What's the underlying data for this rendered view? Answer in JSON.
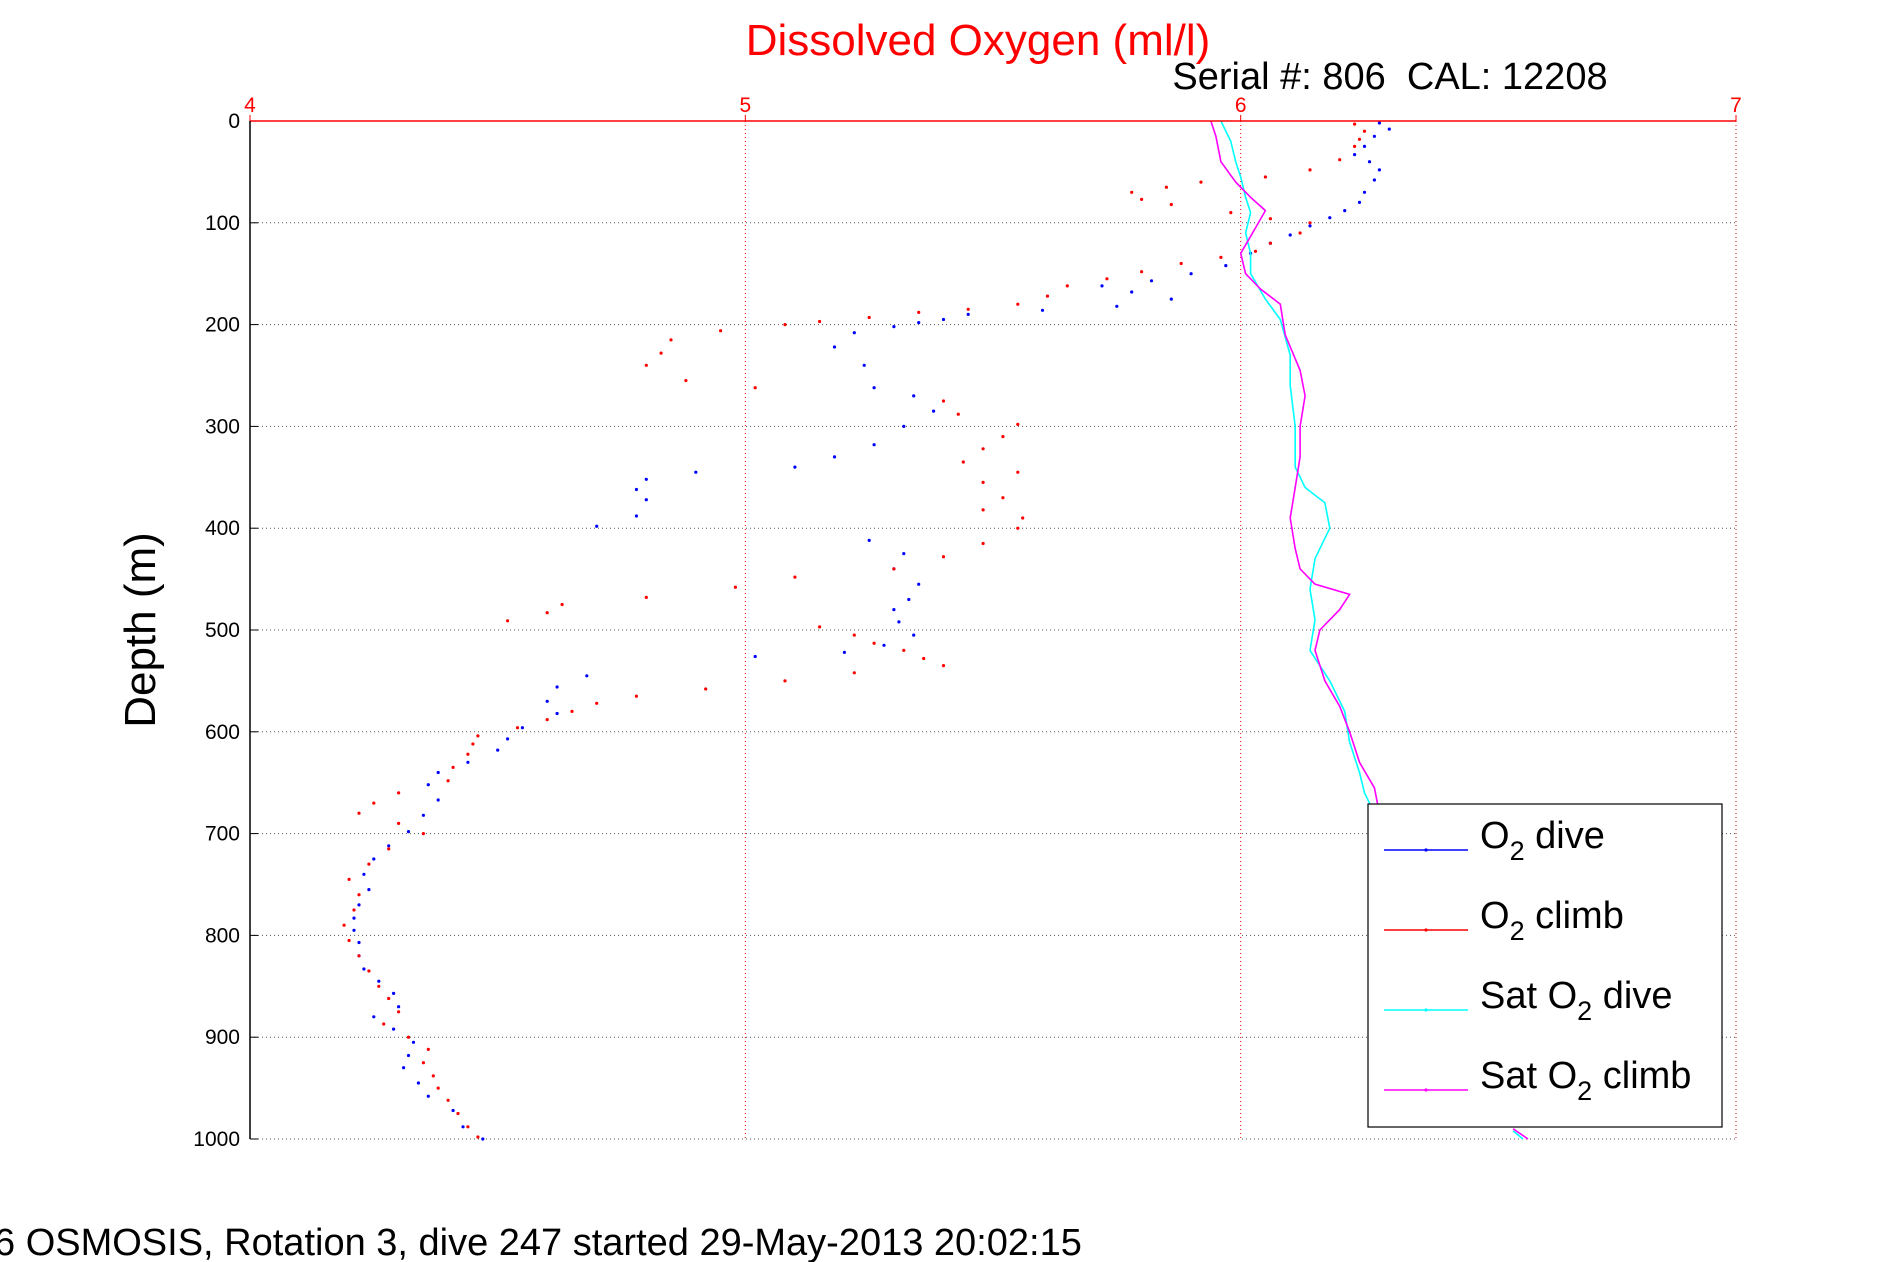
{
  "chart_data": {
    "type": "scatter",
    "title": "Dissolved Oxygen (ml/l)",
    "subtitle": "Serial #: 806  CAL: 12208",
    "ylabel": "Depth (m)",
    "footer": "6 OSMOSIS, Rotation 3, dive 247 started 29-May-2013 20:02:15",
    "xlim": [
      4,
      7
    ],
    "ylim": [
      0,
      1000
    ],
    "y_reversed": true,
    "x_axis_position": "top",
    "x_ticks": [
      "4",
      "5",
      "6",
      "7"
    ],
    "y_ticks": [
      "0",
      "100",
      "200",
      "300",
      "400",
      "500",
      "600",
      "700",
      "800",
      "900",
      "1000"
    ],
    "grid": true,
    "legend_position": "lower-right",
    "colors": {
      "title": "#ff0000",
      "x_axis": "#ff0000",
      "grid": "#555555",
      "o2_dive": "#0000ff",
      "o2_climb": "#ff0000",
      "sat_dive": "#00ffff",
      "sat_climb": "#ff00ff"
    },
    "series": [
      {
        "name": "O2 dive",
        "legend_main": "O",
        "legend_sub": "2",
        "legend_rest": " dive",
        "color": "#0000ff",
        "style": "dots",
        "points": [
          [
            6.28,
            2
          ],
          [
            6.3,
            8
          ],
          [
            6.27,
            15
          ],
          [
            6.25,
            25
          ],
          [
            6.23,
            33
          ],
          [
            6.26,
            40
          ],
          [
            6.28,
            48
          ],
          [
            6.27,
            58
          ],
          [
            6.25,
            70
          ],
          [
            6.24,
            80
          ],
          [
            6.21,
            88
          ],
          [
            6.18,
            95
          ],
          [
            6.14,
            103
          ],
          [
            6.1,
            112
          ],
          [
            6.06,
            120
          ],
          [
            6.02,
            130
          ],
          [
            5.97,
            142
          ],
          [
            5.9,
            150
          ],
          [
            5.82,
            157
          ],
          [
            5.72,
            162
          ],
          [
            5.78,
            168
          ],
          [
            5.86,
            175
          ],
          [
            5.75,
            182
          ],
          [
            5.6,
            186
          ],
          [
            5.45,
            190
          ],
          [
            5.4,
            195
          ],
          [
            5.35,
            198
          ],
          [
            5.3,
            202
          ],
          [
            5.22,
            208
          ],
          [
            5.18,
            222
          ],
          [
            5.24,
            240
          ],
          [
            5.26,
            262
          ],
          [
            5.34,
            270
          ],
          [
            5.38,
            285
          ],
          [
            5.32,
            300
          ],
          [
            5.26,
            318
          ],
          [
            5.18,
            330
          ],
          [
            5.1,
            340
          ],
          [
            4.9,
            345
          ],
          [
            4.8,
            352
          ],
          [
            4.78,
            362
          ],
          [
            4.8,
            372
          ],
          [
            4.78,
            388
          ],
          [
            4.7,
            398
          ],
          [
            5.25,
            412
          ],
          [
            5.32,
            425
          ],
          [
            5.3,
            440
          ],
          [
            5.35,
            455
          ],
          [
            5.33,
            470
          ],
          [
            5.3,
            480
          ],
          [
            5.31,
            492
          ],
          [
            5.34,
            505
          ],
          [
            5.28,
            515
          ],
          [
            5.2,
            522
          ],
          [
            5.02,
            526
          ],
          [
            4.68,
            545
          ],
          [
            4.62,
            556
          ],
          [
            4.6,
            570
          ],
          [
            4.62,
            582
          ],
          [
            4.55,
            596
          ],
          [
            4.52,
            607
          ],
          [
            4.5,
            618
          ],
          [
            4.44,
            630
          ],
          [
            4.38,
            640
          ],
          [
            4.36,
            652
          ],
          [
            4.38,
            667
          ],
          [
            4.35,
            682
          ],
          [
            4.32,
            698
          ],
          [
            4.28,
            712
          ],
          [
            4.25,
            725
          ],
          [
            4.23,
            740
          ],
          [
            4.24,
            755
          ],
          [
            4.22,
            770
          ],
          [
            4.21,
            783
          ],
          [
            4.21,
            795
          ],
          [
            4.22,
            807
          ],
          [
            4.22,
            820
          ],
          [
            4.23,
            833
          ],
          [
            4.26,
            845
          ],
          [
            4.29,
            857
          ],
          [
            4.3,
            870
          ],
          [
            4.25,
            880
          ],
          [
            4.29,
            892
          ],
          [
            4.33,
            905
          ],
          [
            4.32,
            918
          ],
          [
            4.31,
            930
          ],
          [
            4.34,
            945
          ],
          [
            4.36,
            958
          ],
          [
            4.41,
            972
          ],
          [
            4.43,
            988
          ],
          [
            4.47,
            1000
          ]
        ]
      },
      {
        "name": "O2 climb",
        "legend_main": "O",
        "legend_sub": "2",
        "legend_rest": " climb",
        "color": "#ff0000",
        "style": "dots",
        "points": [
          [
            6.23,
            3
          ],
          [
            6.25,
            10
          ],
          [
            6.24,
            18
          ],
          [
            6.23,
            25
          ],
          [
            6.2,
            38
          ],
          [
            6.14,
            48
          ],
          [
            6.05,
            55
          ],
          [
            5.92,
            60
          ],
          [
            5.85,
            65
          ],
          [
            5.78,
            70
          ],
          [
            5.8,
            77
          ],
          [
            5.86,
            82
          ],
          [
            5.98,
            90
          ],
          [
            6.06,
            96
          ],
          [
            6.14,
            100
          ],
          [
            6.12,
            110
          ],
          [
            6.06,
            120
          ],
          [
            6.03,
            128
          ],
          [
            5.96,
            134
          ],
          [
            5.88,
            140
          ],
          [
            5.8,
            148
          ],
          [
            5.73,
            155
          ],
          [
            5.65,
            162
          ],
          [
            5.61,
            172
          ],
          [
            5.55,
            180
          ],
          [
            5.45,
            185
          ],
          [
            5.35,
            188
          ],
          [
            5.25,
            193
          ],
          [
            5.15,
            197
          ],
          [
            5.08,
            200
          ],
          [
            4.95,
            206
          ],
          [
            4.85,
            215
          ],
          [
            4.83,
            228
          ],
          [
            4.8,
            240
          ],
          [
            4.88,
            255
          ],
          [
            5.02,
            262
          ],
          [
            5.4,
            275
          ],
          [
            5.43,
            288
          ],
          [
            5.55,
            298
          ],
          [
            5.52,
            310
          ],
          [
            5.48,
            322
          ],
          [
            5.44,
            335
          ],
          [
            5.55,
            345
          ],
          [
            5.48,
            355
          ],
          [
            5.52,
            370
          ],
          [
            5.48,
            382
          ],
          [
            5.56,
            390
          ],
          [
            5.55,
            400
          ],
          [
            5.48,
            415
          ],
          [
            5.4,
            428
          ],
          [
            5.3,
            440
          ],
          [
            5.1,
            448
          ],
          [
            4.98,
            458
          ],
          [
            4.8,
            468
          ],
          [
            4.63,
            475
          ],
          [
            4.6,
            483
          ],
          [
            4.52,
            491
          ],
          [
            5.15,
            497
          ],
          [
            5.22,
            505
          ],
          [
            5.26,
            513
          ],
          [
            5.32,
            520
          ],
          [
            5.36,
            528
          ],
          [
            5.4,
            535
          ],
          [
            5.22,
            542
          ],
          [
            5.08,
            550
          ],
          [
            4.92,
            558
          ],
          [
            4.78,
            565
          ],
          [
            4.7,
            572
          ],
          [
            4.65,
            580
          ],
          [
            4.6,
            588
          ],
          [
            4.54,
            596
          ],
          [
            4.46,
            604
          ],
          [
            4.45,
            612
          ],
          [
            4.44,
            622
          ],
          [
            4.41,
            635
          ],
          [
            4.4,
            648
          ],
          [
            4.3,
            660
          ],
          [
            4.25,
            670
          ],
          [
            4.22,
            680
          ],
          [
            4.3,
            690
          ],
          [
            4.35,
            700
          ],
          [
            4.28,
            715
          ],
          [
            4.24,
            730
          ],
          [
            4.2,
            745
          ],
          [
            4.22,
            760
          ],
          [
            4.21,
            775
          ],
          [
            4.19,
            790
          ],
          [
            4.2,
            805
          ],
          [
            4.22,
            820
          ],
          [
            4.24,
            835
          ],
          [
            4.26,
            850
          ],
          [
            4.28,
            862
          ],
          [
            4.3,
            875
          ],
          [
            4.27,
            887
          ],
          [
            4.32,
            900
          ],
          [
            4.36,
            912
          ],
          [
            4.35,
            925
          ],
          [
            4.37,
            938
          ],
          [
            4.38,
            950
          ],
          [
            4.4,
            962
          ],
          [
            4.42,
            975
          ],
          [
            4.44,
            988
          ],
          [
            4.46,
            998
          ]
        ]
      },
      {
        "name": "Sat O2 dive",
        "legend_main": "Sat O",
        "legend_sub": "2",
        "legend_rest": " dive",
        "color": "#00ffff",
        "style": "line",
        "points": [
          [
            5.96,
            0
          ],
          [
            5.98,
            20
          ],
          [
            5.99,
            40
          ],
          [
            6.0,
            55
          ],
          [
            6.01,
            75
          ],
          [
            6.02,
            90
          ],
          [
            6.01,
            110
          ],
          [
            6.02,
            130
          ],
          [
            6.02,
            150
          ],
          [
            6.05,
            175
          ],
          [
            6.08,
            195
          ],
          [
            6.1,
            230
          ],
          [
            6.1,
            260
          ],
          [
            6.11,
            300
          ],
          [
            6.11,
            340
          ],
          [
            6.13,
            360
          ],
          [
            6.17,
            375
          ],
          [
            6.18,
            400
          ],
          [
            6.15,
            430
          ],
          [
            6.14,
            460
          ],
          [
            6.15,
            490
          ],
          [
            6.14,
            520
          ],
          [
            6.18,
            550
          ],
          [
            6.21,
            580
          ],
          [
            6.22,
            610
          ],
          [
            6.24,
            640
          ],
          [
            6.25,
            660
          ],
          [
            6.27,
            680
          ]
        ]
      },
      {
        "name": "Sat O2 climb",
        "legend_main": "Sat O",
        "legend_sub": "2",
        "legend_rest": " climb",
        "color": "#ff00ff",
        "style": "line",
        "points": [
          [
            5.94,
            0
          ],
          [
            5.95,
            15
          ],
          [
            5.96,
            40
          ],
          [
            5.99,
            60
          ],
          [
            6.02,
            75
          ],
          [
            6.05,
            88
          ],
          [
            6.03,
            105
          ],
          [
            6.0,
            130
          ],
          [
            6.01,
            150
          ],
          [
            6.04,
            165
          ],
          [
            6.08,
            180
          ],
          [
            6.09,
            210
          ],
          [
            6.12,
            245
          ],
          [
            6.13,
            270
          ],
          [
            6.12,
            300
          ],
          [
            6.12,
            330
          ],
          [
            6.11,
            360
          ],
          [
            6.1,
            390
          ],
          [
            6.11,
            420
          ],
          [
            6.12,
            440
          ],
          [
            6.15,
            455
          ],
          [
            6.22,
            465
          ],
          [
            6.2,
            480
          ],
          [
            6.16,
            500
          ],
          [
            6.15,
            520
          ],
          [
            6.17,
            550
          ],
          [
            6.2,
            575
          ],
          [
            6.22,
            600
          ],
          [
            6.24,
            630
          ],
          [
            6.27,
            655
          ],
          [
            6.28,
            680
          ]
        ]
      },
      {
        "name": "Sat O2 tail",
        "color": "#ff00ff",
        "style": "line",
        "in_legend": false,
        "points": [
          [
            6.55,
            990
          ],
          [
            6.58,
            1000
          ]
        ]
      },
      {
        "name": "Sat O2 tail dive",
        "color": "#00ffff",
        "style": "line",
        "in_legend": false,
        "points": [
          [
            6.55,
            992
          ],
          [
            6.57,
            1000
          ]
        ]
      }
    ]
  }
}
